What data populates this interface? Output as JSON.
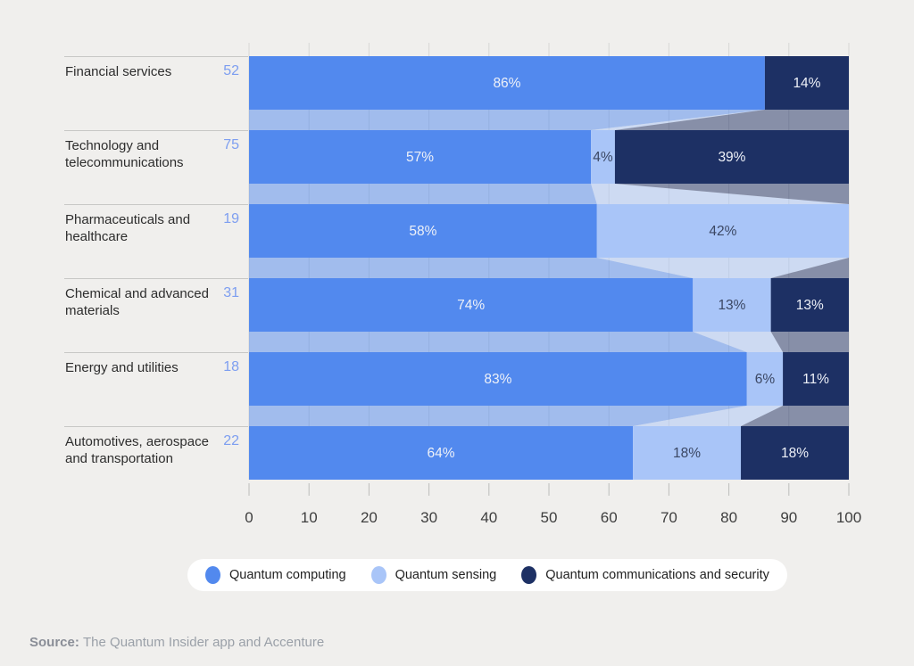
{
  "page": {
    "background": "#f0efed"
  },
  "chart_data": {
    "type": "bar",
    "subtype": "horizontal-stacked-with-flow-connectors",
    "unit": "%",
    "x_axis": {
      "min": 0,
      "max": 100,
      "tick_step": 10,
      "ticks": [
        0,
        10,
        20,
        30,
        40,
        50,
        60,
        70,
        80,
        90,
        100
      ]
    },
    "grid": true,
    "legend_position": "bottom",
    "colors": {
      "computing": "#5289ee",
      "sensing": "#a9c5f8",
      "communications": "#1d3064",
      "label_on_computing": "#eef1f8",
      "label_on_sensing": "#3b4763",
      "label_on_communications": "#eef1f8",
      "connector_opacity": 0.5,
      "gridline": "#d7d7d5",
      "axis_tick": "#bdbdbb",
      "axis_label": "#3e3e3e"
    },
    "legend": [
      {
        "key": "computing",
        "label": "Quantum computing"
      },
      {
        "key": "sensing",
        "label": "Quantum sensing"
      },
      {
        "key": "communications",
        "label": "Quantum communications and security"
      }
    ],
    "rows": [
      {
        "label": "Financial services",
        "count": 52,
        "values": {
          "computing": 86,
          "sensing": 0,
          "communications": 14
        }
      },
      {
        "label": "Technology and telecommunications",
        "count": 75,
        "values": {
          "computing": 57,
          "sensing": 4,
          "communications": 39
        }
      },
      {
        "label": "Pharmaceuticals and healthcare",
        "count": 19,
        "values": {
          "computing": 58,
          "sensing": 42,
          "communications": 0
        }
      },
      {
        "label": "Chemical and advanced materials",
        "count": 31,
        "values": {
          "computing": 74,
          "sensing": 13,
          "communications": 13
        }
      },
      {
        "label": "Energy and utilities",
        "count": 18,
        "values": {
          "computing": 83,
          "sensing": 6,
          "communications": 11
        }
      },
      {
        "label": "Automotives, aerospace and transportation",
        "count": 22,
        "values": {
          "computing": 64,
          "sensing": 18,
          "communications": 18
        }
      }
    ]
  },
  "source": {
    "prefix": "Source:",
    "text": "The Quantum Insider app and Accenture"
  }
}
